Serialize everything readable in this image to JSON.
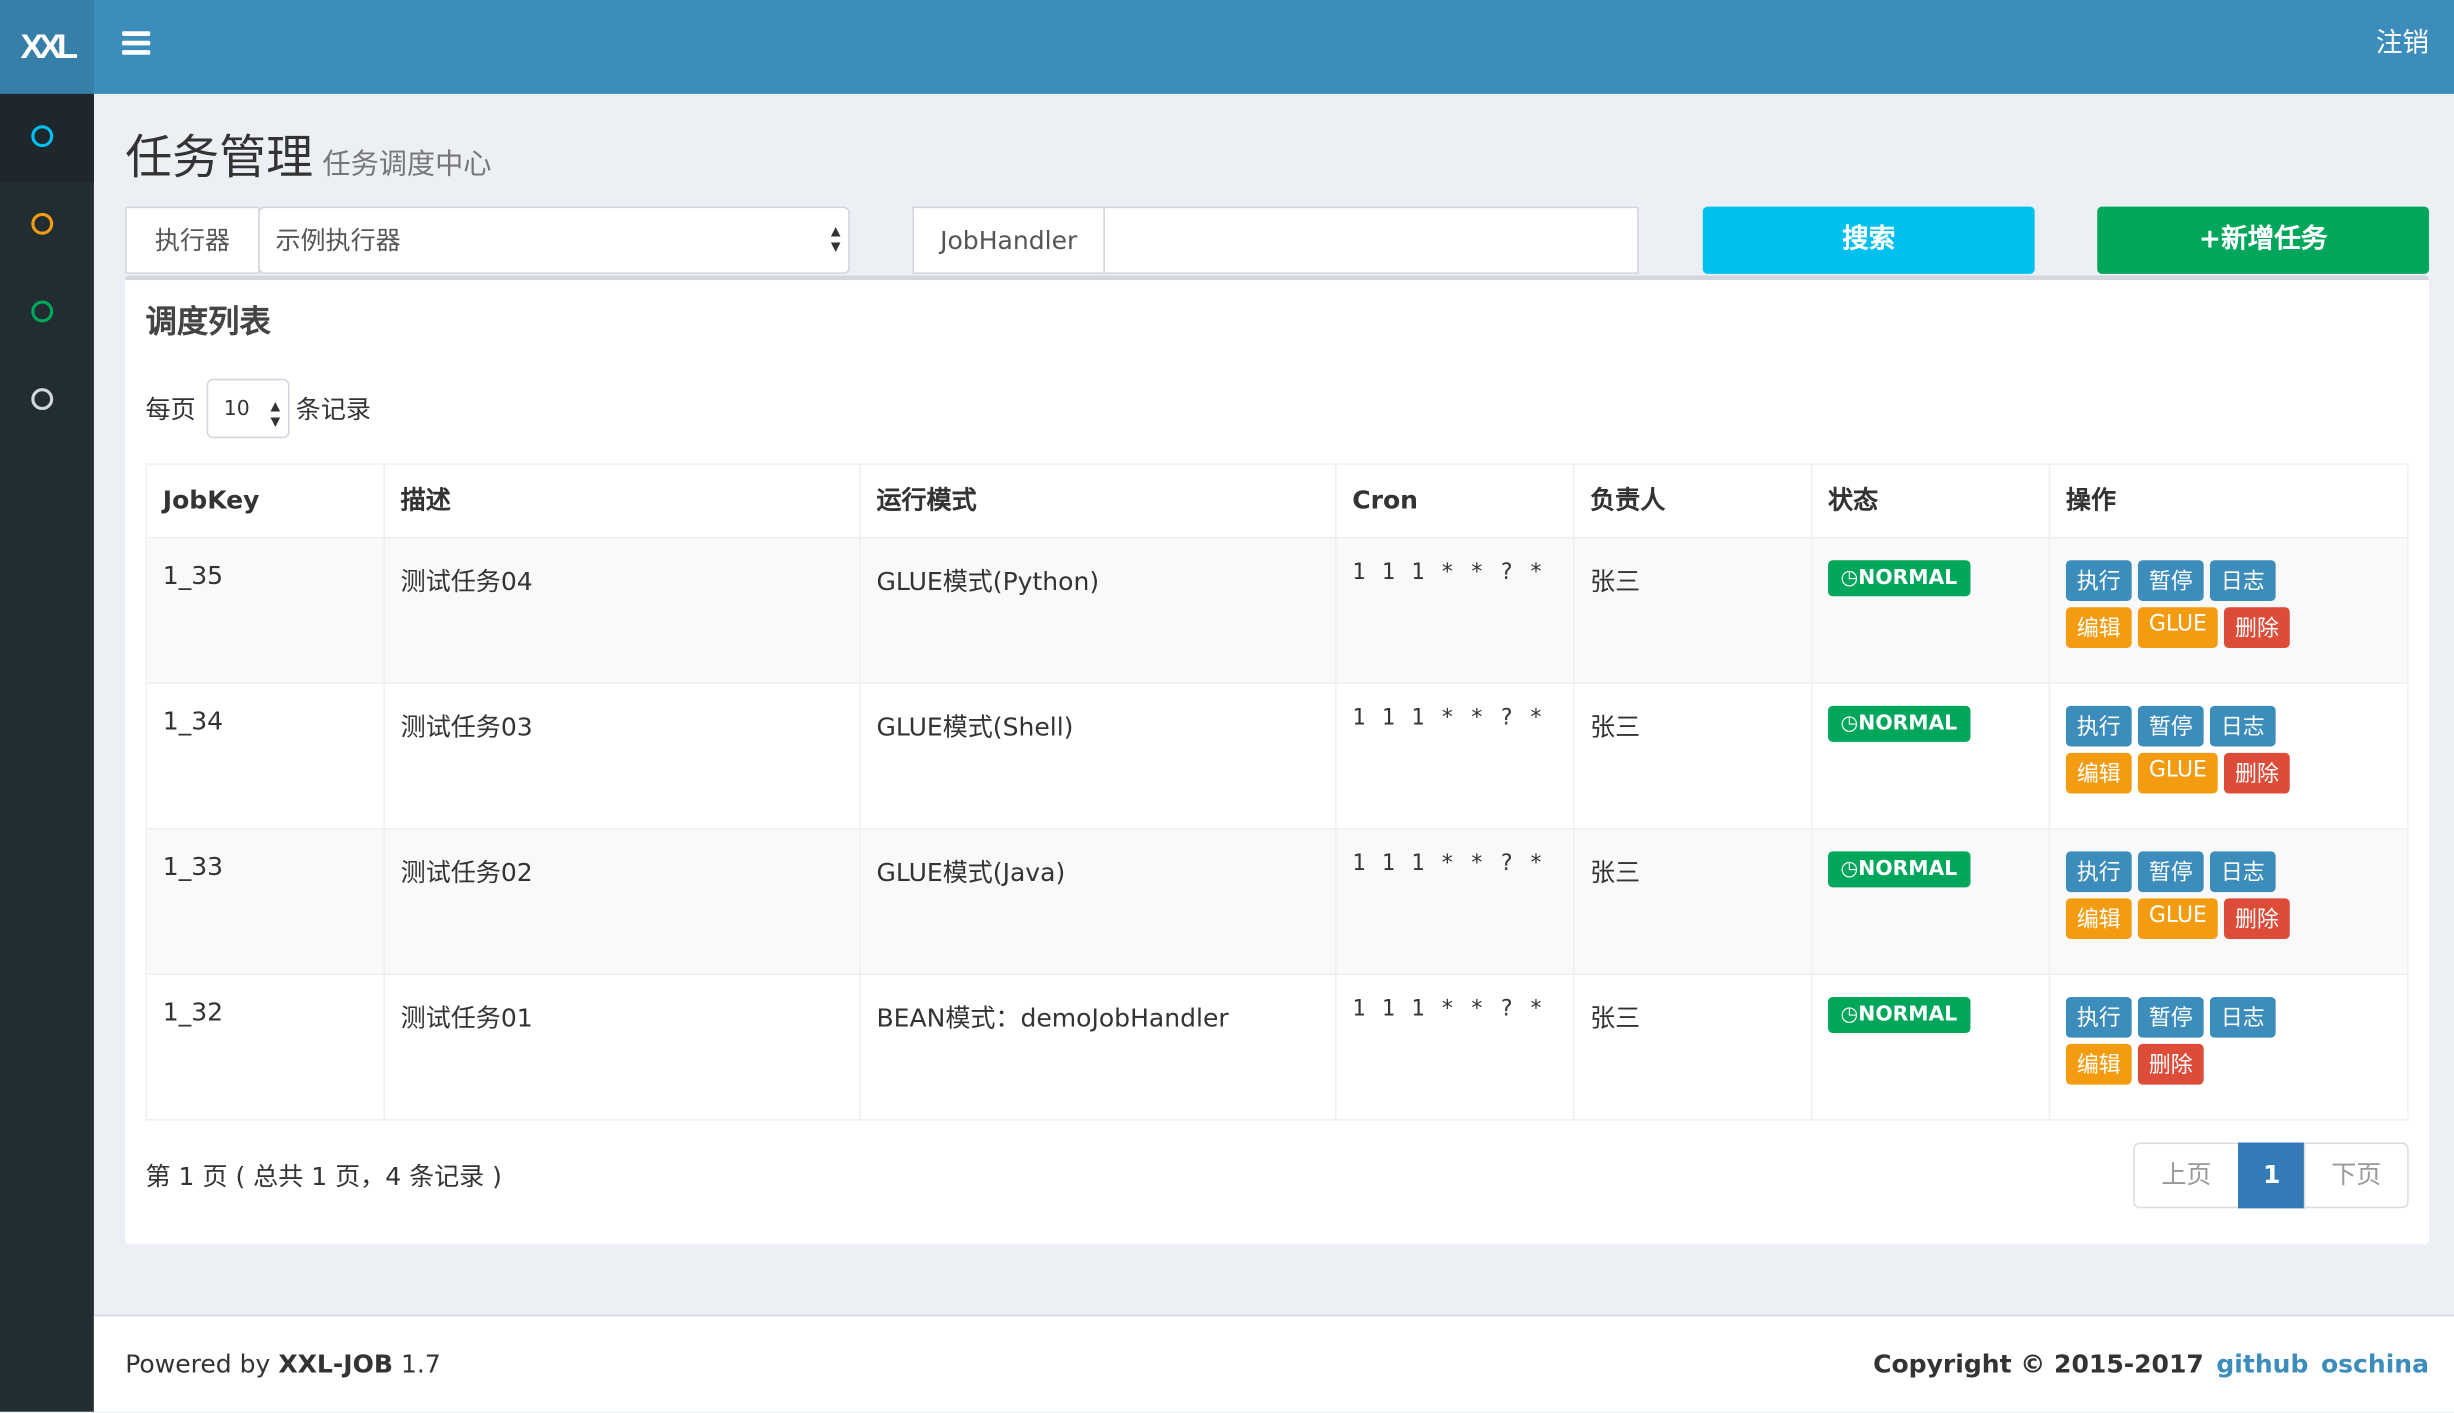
{
  "header": {
    "logo": "XXL",
    "logout": "注销"
  },
  "sidebar": {
    "items": [
      {
        "icon": "circle-icon",
        "color": "#00c0ef"
      },
      {
        "icon": "circle-icon",
        "color": "#f39c12"
      },
      {
        "icon": "circle-icon",
        "color": "#00a65a"
      },
      {
        "icon": "circle-icon",
        "color": "#d2d6de"
      }
    ]
  },
  "page": {
    "title": "任务管理",
    "subtitle": "任务调度中心"
  },
  "filters": {
    "executor_label": "执行器",
    "executor_value": "示例执行器",
    "jobhandler_label": "JobHandler",
    "jobhandler_value": "",
    "search": "搜索",
    "add": "+新增任务"
  },
  "list": {
    "title": "调度列表",
    "per_page_prefix": "每页",
    "per_page_value": "10",
    "per_page_suffix": "条记录",
    "columns": [
      "JobKey",
      "描述",
      "运行模式",
      "Cron",
      "负责人",
      "状态",
      "操作"
    ],
    "rows": [
      {
        "key": "1_35",
        "desc": "测试任务04",
        "mode": "GLUE模式(Python)",
        "cron": "1 1 1 * * ? *",
        "owner": "张三",
        "status": "NORMAL"
      },
      {
        "key": "1_34",
        "desc": "测试任务03",
        "mode": "GLUE模式(Shell)",
        "cron": "1 1 1 * * ? *",
        "owner": "张三",
        "status": "NORMAL"
      },
      {
        "key": "1_33",
        "desc": "测试任务02",
        "mode": "GLUE模式(Java)",
        "cron": "1 1 1 * * ? *",
        "owner": "张三",
        "status": "NORMAL"
      },
      {
        "key": "1_32",
        "desc": "测试任务01",
        "mode": "BEAN模式：demoJobHandler",
        "cron": "1 1 1 * * ? *",
        "owner": "张三",
        "status": "NORMAL"
      }
    ],
    "actions": {
      "run": "执行",
      "pause": "暂停",
      "log": "日志",
      "edit": "编辑",
      "glue": "GLUE",
      "delete": "删除"
    },
    "page_info": "第 1 页 ( 总共 1 页，4 条记录 )",
    "pagination": {
      "prev": "上页",
      "current": "1",
      "next": "下页"
    }
  },
  "footer": {
    "powered_prefix": "Powered by ",
    "powered_name": "XXL-JOB",
    "version": " 1.7",
    "copyright": "Copyright © 2015-2017",
    "github": "github",
    "oschina": "oschina"
  }
}
